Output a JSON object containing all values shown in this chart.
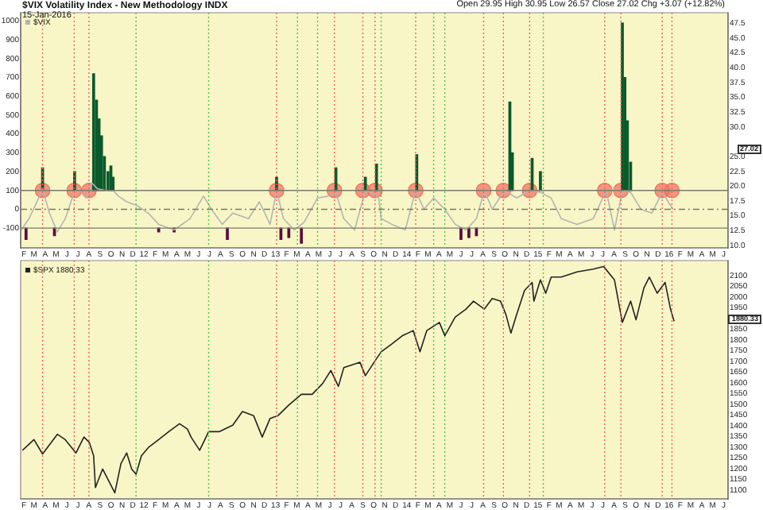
{
  "chart_data": [
    {
      "type": "line",
      "title": "$VIX Volatility Index - New Methodology INDX",
      "annotations": [
        "15-Jan-2016",
        "Open 29.95 High 30.95 Low 26.57 Close 27.02 Chg +3.07 (+12.82%)",
        "27.02"
      ],
      "xlim": [
        "2011-01-23",
        "2016-06-13"
      ],
      "xticks": [
        {
          "value": "2011-02",
          "label": "F"
        },
        {
          "value": "2011-03",
          "label": "M"
        },
        {
          "value": "2011-04",
          "label": "A"
        },
        {
          "value": "2011-05",
          "label": "M"
        },
        {
          "value": "2011-06",
          "label": "J"
        },
        {
          "value": "2011-07",
          "label": "J"
        },
        {
          "value": "2011-08",
          "label": "A"
        },
        {
          "value": "2011-09",
          "label": "S"
        },
        {
          "value": "2011-10",
          "label": "O"
        },
        {
          "value": "2011-11",
          "label": "N"
        },
        {
          "value": "2011-12",
          "label": "D"
        },
        {
          "value": "2012-01",
          "label": "12"
        },
        {
          "value": "2012-02",
          "label": "F"
        },
        {
          "value": "2012-03",
          "label": "M"
        },
        {
          "value": "2012-04",
          "label": "A"
        },
        {
          "value": "2012-05",
          "label": "M"
        },
        {
          "value": "2012-06",
          "label": "J"
        },
        {
          "value": "2012-07",
          "label": "J"
        },
        {
          "value": "2012-08",
          "label": "A"
        },
        {
          "value": "2012-09",
          "label": "S"
        },
        {
          "value": "2012-10",
          "label": "O"
        },
        {
          "value": "2012-11",
          "label": "N"
        },
        {
          "value": "2012-12",
          "label": "D"
        },
        {
          "value": "2013-01",
          "label": "13"
        },
        {
          "value": "2013-02",
          "label": "F"
        },
        {
          "value": "2013-03",
          "label": "M"
        },
        {
          "value": "2013-04",
          "label": "A"
        },
        {
          "value": "2013-05",
          "label": "M"
        },
        {
          "value": "2013-06",
          "label": "J"
        },
        {
          "value": "2013-07",
          "label": "J"
        },
        {
          "value": "2013-08",
          "label": "A"
        },
        {
          "value": "2013-09",
          "label": "S"
        },
        {
          "value": "2013-10",
          "label": "O"
        },
        {
          "value": "2013-11",
          "label": "N"
        },
        {
          "value": "2013-12",
          "label": "D"
        },
        {
          "value": "2014-01",
          "label": "14"
        },
        {
          "value": "2014-02",
          "label": "F"
        },
        {
          "value": "2014-03",
          "label": "M"
        },
        {
          "value": "2014-04",
          "label": "A"
        },
        {
          "value": "2014-05",
          "label": "M"
        },
        {
          "value": "2014-06",
          "label": "J"
        },
        {
          "value": "2014-07",
          "label": "J"
        },
        {
          "value": "2014-08",
          "label": "A"
        },
        {
          "value": "2014-09",
          "label": "S"
        },
        {
          "value": "2014-10",
          "label": "O"
        },
        {
          "value": "2014-11",
          "label": "N"
        },
        {
          "value": "2014-12",
          "label": "D"
        },
        {
          "value": "2015-01",
          "label": "15"
        },
        {
          "value": "2015-02",
          "label": "F"
        },
        {
          "value": "2015-03",
          "label": "M"
        },
        {
          "value": "2015-04",
          "label": "A"
        },
        {
          "value": "2015-05",
          "label": "M"
        },
        {
          "value": "2015-06",
          "label": "J"
        },
        {
          "value": "2015-07",
          "label": "J"
        },
        {
          "value": "2015-08",
          "label": "A"
        },
        {
          "value": "2015-09",
          "label": "S"
        },
        {
          "value": "2015-10",
          "label": "O"
        },
        {
          "value": "2015-11",
          "label": "N"
        },
        {
          "value": "2015-12",
          "label": "D"
        },
        {
          "value": "2016-01",
          "label": "16"
        },
        {
          "value": "2016-02",
          "label": "F"
        },
        {
          "value": "2016-03",
          "label": "M"
        },
        {
          "value": "2016-04",
          "label": "A"
        },
        {
          "value": "2016-05",
          "label": "M"
        },
        {
          "value": "2016-06",
          "label": "J"
        }
      ],
      "ylim": [
        -205,
        1045
      ],
      "yticks": [
        -100,
        0,
        100,
        200,
        300,
        400,
        500,
        600,
        700,
        800,
        900,
        1000
      ],
      "y2lim": [
        9.6,
        49.3
      ],
      "y2ticks": [
        {
          "value": 10,
          "label": "10.0"
        },
        12.5,
        {
          "value": 15,
          "label": "15.0"
        },
        17.5,
        {
          "value": 20,
          "label": "20.0"
        },
        22.5,
        {
          "value": 25,
          "label": "25.0"
        },
        {
          "value": 30,
          "label": "30.0"
        },
        32.5,
        {
          "value": 35,
          "label": "35.0"
        },
        37.5,
        {
          "value": 40,
          "label": "40.0"
        },
        42.5,
        {
          "value": 45,
          "label": "45.0"
        },
        47.5
      ],
      "legend": "top left",
      "ref_lines": [
        {
          "axis": "y",
          "value": 100,
          "color": "#7a7a6a"
        },
        {
          "axis": "y",
          "value": -100,
          "color": "#7a7a6a"
        },
        {
          "axis": "y",
          "value": 0,
          "color": "#7a7a6a",
          "line_style": "dashed"
        },
        {
          "axis": "x",
          "value": "2011-03-25",
          "color": "#f06060",
          "line_style": "dotted"
        },
        {
          "axis": "x",
          "value": "2011-06-21",
          "color": "#f06060",
          "line_style": "dotted"
        },
        {
          "axis": "x",
          "value": "2011-08-01",
          "color": "#f06060",
          "line_style": "dotted"
        },
        {
          "axis": "x",
          "value": "2013-01-04",
          "color": "#f06060",
          "line_style": "dotted"
        },
        {
          "axis": "x",
          "value": "2013-06-14",
          "color": "#f06060",
          "line_style": "dotted"
        },
        {
          "axis": "x",
          "value": "2013-09-01",
          "color": "#f06060",
          "line_style": "dotted"
        },
        {
          "axis": "x",
          "value": "2013-10-05",
          "color": "#f06060",
          "line_style": "dotted"
        },
        {
          "axis": "x",
          "value": "2014-01-26",
          "color": "#f06060",
          "line_style": "dotted"
        },
        {
          "axis": "x",
          "value": "2014-08-03",
          "color": "#f06060",
          "line_style": "dotted"
        },
        {
          "axis": "x",
          "value": "2014-09-27",
          "color": "#f06060",
          "line_style": "dotted"
        },
        {
          "axis": "x",
          "value": "2014-12-09",
          "color": "#f06060",
          "line_style": "dotted"
        },
        {
          "axis": "x",
          "value": "2015-07-06",
          "color": "#f06060",
          "line_style": "dotted"
        },
        {
          "axis": "x",
          "value": "2015-08-20",
          "color": "#f06060",
          "line_style": "dotted"
        },
        {
          "axis": "x",
          "value": "2015-12-13",
          "color": "#f06060",
          "line_style": "dotted"
        },
        {
          "axis": "x",
          "value": "2016-01-09",
          "color": "#f06060",
          "line_style": "dotted"
        },
        {
          "axis": "x",
          "value": "2011-12-10",
          "color": "#50c050",
          "line_style": "dotted"
        },
        {
          "axis": "x",
          "value": "2012-06-29",
          "color": "#50c050",
          "line_style": "dotted"
        },
        {
          "axis": "x",
          "value": "2013-03-03",
          "color": "#50c050",
          "line_style": "dotted"
        },
        {
          "axis": "x",
          "value": "2013-04-28",
          "color": "#50c050",
          "line_style": "dotted"
        },
        {
          "axis": "x",
          "value": "2013-10-22",
          "color": "#50c050",
          "line_style": "dotted"
        },
        {
          "axis": "x",
          "value": "2014-03-17",
          "color": "#50c050",
          "line_style": "dotted"
        },
        {
          "axis": "x",
          "value": "2014-04-17",
          "color": "#50c050",
          "line_style": "dotted"
        },
        {
          "axis": "x",
          "value": "2015-01-16",
          "color": "#50c050",
          "line_style": "dotted"
        }
      ],
      "series": [
        {
          "name": "$VIX",
          "color": "#b4b4b4",
          "marker": "none",
          "x": [
            "2011-01-25",
            "2011-02-15",
            "2011-03-07",
            "2011-03-25",
            "2011-04-13",
            "2011-05-05",
            "2011-05-27",
            "2011-06-21",
            "2011-07-03",
            "2011-07-25",
            "2011-08-09",
            "2011-08-24",
            "2011-09-16",
            "2011-10-07",
            "2011-10-22",
            "2011-11-14",
            "2011-12-13",
            "2012-01-13",
            "2012-02-11",
            "2012-03-25",
            "2012-05-08",
            "2012-06-15",
            "2012-07-07",
            "2012-08-06",
            "2012-09-04",
            "2012-10-18",
            "2012-11-17",
            "2012-12-17",
            "2013-01-04",
            "2013-01-23",
            "2013-02-22",
            "2013-03-21",
            "2013-04-28",
            "2013-05-27",
            "2013-06-18",
            "2013-07-10",
            "2013-08-09",
            "2013-09-08",
            "2013-09-23",
            "2013-10-15",
            "2013-10-22",
            "2013-11-21",
            "2013-12-28",
            "2014-01-26",
            "2014-02-18",
            "2014-03-17",
            "2014-04-17",
            "2014-05-16",
            "2014-06-15",
            "2014-07-14",
            "2014-08-05",
            "2014-08-27",
            "2014-09-30",
            "2014-11-03",
            "2014-12-09",
            "2015-01-08",
            "2015-02-07",
            "2015-03-07",
            "2015-04-20",
            "2015-06-04",
            "2015-07-10",
            "2015-08-02",
            "2015-08-24",
            "2015-09-16",
            "2015-10-15",
            "2015-11-14",
            "2015-12-13",
            "2016-01-12"
          ],
          "values": [
            -110,
            -50,
            30,
            110,
            -20,
            -120,
            -50,
            90,
            110,
            60,
            140,
            110,
            100,
            100,
            70,
            40,
            20,
            -20,
            -80,
            -110,
            -50,
            70,
            0,
            -80,
            -20,
            -50,
            40,
            -80,
            100,
            -50,
            -110,
            -70,
            60,
            70,
            90,
            -50,
            -110,
            100,
            90,
            60,
            -50,
            -80,
            -110,
            100,
            0,
            60,
            0,
            -80,
            -110,
            -50,
            100,
            0,
            100,
            60,
            100,
            90,
            60,
            -50,
            -80,
            -50,
            100,
            -110,
            100,
            90,
            0,
            -20,
            90,
            0
          ]
        },
        {
          "type": "bar",
          "color": "#0b5a2c",
          "x": [
            "2011-03-25",
            "2011-06-22",
            "2011-08-14",
            "2011-08-22",
            "2011-08-29",
            "2011-09-05",
            "2011-09-13",
            "2011-09-23",
            "2011-10-01",
            "2011-10-07",
            "2013-01-04",
            "2013-06-18",
            "2013-09-08",
            "2013-10-09",
            "2014-01-29",
            "2014-10-15",
            "2014-10-22",
            "2014-12-16",
            "2015-01-08",
            "2015-08-24",
            "2015-08-31",
            "2015-09-07",
            "2015-09-16"
          ],
          "base": [
            100,
            100,
            100,
            100,
            100,
            100,
            100,
            100,
            100,
            100,
            100,
            100,
            100,
            100,
            100,
            100,
            100,
            100,
            100,
            100,
            100,
            100,
            100
          ],
          "values": [
            120,
            100,
            620,
            480,
            380,
            290,
            180,
            100,
            130,
            70,
            70,
            120,
            70,
            140,
            190,
            470,
            200,
            170,
            100,
            890,
            600,
            370,
            150
          ]
        },
        {
          "type": "bar",
          "color": "#5c0c3c",
          "x": [
            "2011-02-07",
            "2011-04-27",
            "2012-02-11",
            "2012-03-25",
            "2012-08-20",
            "2013-01-16",
            "2013-02-07",
            "2013-03-14",
            "2014-06-01",
            "2014-06-23",
            "2014-07-14"
          ],
          "base": [
            -100,
            -100,
            -100,
            -100,
            -100,
            -100,
            -100,
            -100,
            -100,
            -100,
            -100
          ],
          "values": [
            -60,
            -40,
            -20,
            -20,
            -60,
            -60,
            -50,
            -80,
            -60,
            -50,
            -40
          ]
        },
        {
          "type": "scatter",
          "color": "#f07060",
          "marker": "circle",
          "x": [
            "2011-03-25",
            "2011-06-21",
            "2011-08-01",
            "2013-01-04",
            "2013-06-14",
            "2013-09-01",
            "2013-10-05",
            "2014-01-26",
            "2014-08-03",
            "2014-09-27",
            "2014-12-09",
            "2015-07-06",
            "2015-08-20",
            "2015-12-13",
            "2016-01-09"
          ],
          "values": [
            100,
            100,
            100,
            100,
            100,
            100,
            100,
            100,
            100,
            100,
            100,
            100,
            100,
            100,
            100
          ]
        }
      ]
    },
    {
      "type": "line",
      "annotations": [
        "1880.33"
      ],
      "xlim": [
        "2011-01-23",
        "2016-06-13"
      ],
      "xticks": [
        {
          "value": "2011-02",
          "label": "F"
        },
        {
          "value": "2011-03",
          "label": "M"
        },
        {
          "value": "2011-04",
          "label": "A"
        },
        {
          "value": "2011-05",
          "label": "M"
        },
        {
          "value": "2011-06",
          "label": "J"
        },
        {
          "value": "2011-07",
          "label": "J"
        },
        {
          "value": "2011-08",
          "label": "A"
        },
        {
          "value": "2011-09",
          "label": "S"
        },
        {
          "value": "2011-10",
          "label": "O"
        },
        {
          "value": "2011-11",
          "label": "N"
        },
        {
          "value": "2011-12",
          "label": "D"
        },
        {
          "value": "2012-01",
          "label": "12"
        },
        {
          "value": "2012-02",
          "label": "F"
        },
        {
          "value": "2012-03",
          "label": "M"
        },
        {
          "value": "2012-04",
          "label": "A"
        },
        {
          "value": "2012-05",
          "label": "M"
        },
        {
          "value": "2012-06",
          "label": "J"
        },
        {
          "value": "2012-07",
          "label": "J"
        },
        {
          "value": "2012-08",
          "label": "A"
        },
        {
          "value": "2012-09",
          "label": "S"
        },
        {
          "value": "2012-10",
          "label": "O"
        },
        {
          "value": "2012-11",
          "label": "N"
        },
        {
          "value": "2012-12",
          "label": "D"
        },
        {
          "value": "2013-01",
          "label": "13"
        },
        {
          "value": "2013-02",
          "label": "F"
        },
        {
          "value": "2013-03",
          "label": "M"
        },
        {
          "value": "2013-04",
          "label": "A"
        },
        {
          "value": "2013-05",
          "label": "M"
        },
        {
          "value": "2013-06",
          "label": "J"
        },
        {
          "value": "2013-07",
          "label": "J"
        },
        {
          "value": "2013-08",
          "label": "A"
        },
        {
          "value": "2013-09",
          "label": "S"
        },
        {
          "value": "2013-10",
          "label": "O"
        },
        {
          "value": "2013-11",
          "label": "N"
        },
        {
          "value": "2013-12",
          "label": "D"
        },
        {
          "value": "2014-01",
          "label": "14"
        },
        {
          "value": "2014-02",
          "label": "F"
        },
        {
          "value": "2014-03",
          "label": "M"
        },
        {
          "value": "2014-04",
          "label": "A"
        },
        {
          "value": "2014-05",
          "label": "M"
        },
        {
          "value": "2014-06",
          "label": "J"
        },
        {
          "value": "2014-07",
          "label": "J"
        },
        {
          "value": "2014-08",
          "label": "A"
        },
        {
          "value": "2014-09",
          "label": "S"
        },
        {
          "value": "2014-10",
          "label": "O"
        },
        {
          "value": "2014-11",
          "label": "N"
        },
        {
          "value": "2014-12",
          "label": "D"
        },
        {
          "value": "2015-01",
          "label": "15"
        },
        {
          "value": "2015-02",
          "label": "F"
        },
        {
          "value": "2015-03",
          "label": "M"
        },
        {
          "value": "2015-04",
          "label": "A"
        },
        {
          "value": "2015-05",
          "label": "M"
        },
        {
          "value": "2015-06",
          "label": "J"
        },
        {
          "value": "2015-07",
          "label": "J"
        },
        {
          "value": "2015-08",
          "label": "A"
        },
        {
          "value": "2015-09",
          "label": "S"
        },
        {
          "value": "2015-10",
          "label": "O"
        },
        {
          "value": "2015-11",
          "label": "N"
        },
        {
          "value": "2015-12",
          "label": "D"
        },
        {
          "value": "2016-01",
          "label": "16"
        },
        {
          "value": "2016-02",
          "label": "F"
        },
        {
          "value": "2016-03",
          "label": "M"
        },
        {
          "value": "2016-04",
          "label": "A"
        },
        {
          "value": "2016-05",
          "label": "M"
        },
        {
          "value": "2016-06",
          "label": "J"
        }
      ],
      "y2lim": [
        1060,
        2170
      ],
      "y2ticks": [
        1100,
        1150,
        1200,
        1250,
        1300,
        1350,
        1400,
        1450,
        1500,
        1550,
        1600,
        1650,
        1700,
        1750,
        1800,
        1850,
        1950,
        2000,
        2050,
        2100
      ],
      "legend": "top left",
      "ref_lines": [
        {
          "axis": "x",
          "value": "2011-03-25",
          "color": "#f06060",
          "line_style": "dotted"
        },
        {
          "axis": "x",
          "value": "2011-06-21",
          "color": "#f06060",
          "line_style": "dotted"
        },
        {
          "axis": "x",
          "value": "2011-08-01",
          "color": "#f06060",
          "line_style": "dotted"
        },
        {
          "axis": "x",
          "value": "2013-01-04",
          "color": "#f06060",
          "line_style": "dotted"
        },
        {
          "axis": "x",
          "value": "2013-06-14",
          "color": "#f06060",
          "line_style": "dotted"
        },
        {
          "axis": "x",
          "value": "2013-09-01",
          "color": "#f06060",
          "line_style": "dotted"
        },
        {
          "axis": "x",
          "value": "2013-10-05",
          "color": "#f06060",
          "line_style": "dotted"
        },
        {
          "axis": "x",
          "value": "2014-01-26",
          "color": "#f06060",
          "line_style": "dotted"
        },
        {
          "axis": "x",
          "value": "2014-08-03",
          "color": "#f06060",
          "line_style": "dotted"
        },
        {
          "axis": "x",
          "value": "2014-09-27",
          "color": "#f06060",
          "line_style": "dotted"
        },
        {
          "axis": "x",
          "value": "2014-12-09",
          "color": "#f06060",
          "line_style": "dotted"
        },
        {
          "axis": "x",
          "value": "2015-07-06",
          "color": "#f06060",
          "line_style": "dotted"
        },
        {
          "axis": "x",
          "value": "2015-08-20",
          "color": "#f06060",
          "line_style": "dotted"
        },
        {
          "axis": "x",
          "value": "2015-12-13",
          "color": "#f06060",
          "line_style": "dotted"
        },
        {
          "axis": "x",
          "value": "2016-01-09",
          "color": "#f06060",
          "line_style": "dotted"
        },
        {
          "axis": "x",
          "value": "2011-12-10",
          "color": "#50c050",
          "line_style": "dotted"
        },
        {
          "axis": "x",
          "value": "2012-06-29",
          "color": "#50c050",
          "line_style": "dotted"
        },
        {
          "axis": "x",
          "value": "2013-03-03",
          "color": "#50c050",
          "line_style": "dotted"
        },
        {
          "axis": "x",
          "value": "2013-04-28",
          "color": "#50c050",
          "line_style": "dotted"
        },
        {
          "axis": "x",
          "value": "2013-10-22",
          "color": "#50c050",
          "line_style": "dotted"
        },
        {
          "axis": "x",
          "value": "2014-03-17",
          "color": "#50c050",
          "line_style": "dotted"
        },
        {
          "axis": "x",
          "value": "2014-04-17",
          "color": "#50c050",
          "line_style": "dotted"
        },
        {
          "axis": "x",
          "value": "2015-01-16",
          "color": "#50c050",
          "line_style": "dotted"
        }
      ],
      "series": [
        {
          "name": "$SPX 1880.33",
          "color": "#222222",
          "marker": "none",
          "axis": "y2",
          "x": [
            "2011-01-28",
            "2011-03-01",
            "2011-03-25",
            "2011-05-05",
            "2011-05-27",
            "2011-06-26",
            "2011-07-18",
            "2011-08-02",
            "2011-08-14",
            "2011-08-19",
            "2011-09-08",
            "2011-09-23",
            "2011-10-12",
            "2011-10-29",
            "2011-11-14",
            "2011-11-28",
            "2011-12-10",
            "2011-12-25",
            "2012-01-13",
            "2012-02-11",
            "2012-03-10",
            "2012-04-09",
            "2012-05-01",
            "2012-05-11",
            "2012-06-04",
            "2012-06-29",
            "2012-07-28",
            "2012-09-04",
            "2012-10-01",
            "2012-11-01",
            "2012-11-25",
            "2012-12-17",
            "2013-01-08",
            "2013-02-07",
            "2013-03-14",
            "2013-04-13",
            "2013-05-12",
            "2013-06-04",
            "2013-06-25",
            "2013-07-10",
            "2013-08-24",
            "2013-09-08",
            "2013-10-07",
            "2013-10-22",
            "2013-11-21",
            "2013-12-20",
            "2014-01-19",
            "2014-02-07",
            "2014-02-26",
            "2014-04-02",
            "2014-04-17",
            "2014-05-16",
            "2014-06-15",
            "2014-07-06",
            "2014-08-05",
            "2014-08-27",
            "2014-09-19",
            "2014-10-04",
            "2014-10-18",
            "2014-11-03",
            "2014-11-25",
            "2014-12-16",
            "2014-12-21",
            "2015-01-08",
            "2015-01-23",
            "2015-02-07",
            "2015-03-07",
            "2015-04-20",
            "2015-06-04",
            "2015-07-03",
            "2015-08-02",
            "2015-08-24",
            "2015-09-16",
            "2015-10-01",
            "2015-10-23",
            "2015-11-07",
            "2015-11-29",
            "2015-12-21",
            "2016-01-05",
            "2016-01-15"
          ],
          "values": [
            1286,
            1336,
            1269,
            1361,
            1336,
            1274,
            1348,
            1323,
            1261,
            1113,
            1199,
            1150,
            1088,
            1224,
            1274,
            1199,
            1175,
            1261,
            1299,
            1336,
            1373,
            1410,
            1385,
            1348,
            1286,
            1373,
            1373,
            1403,
            1467,
            1448,
            1348,
            1435,
            1448,
            1497,
            1547,
            1547,
            1597,
            1658,
            1584,
            1671,
            1696,
            1634,
            1708,
            1745,
            1782,
            1820,
            1844,
            1745,
            1844,
            1882,
            1820,
            1907,
            1944,
            1981,
            1944,
            1993,
            1981,
            1919,
            1832,
            1919,
            2031,
            2068,
            1981,
            2080,
            2018,
            2093,
            2093,
            2117,
            2130,
            2142,
            2080,
            1882,
            1981,
            1894,
            2043,
            2093,
            2018,
            2068,
            1944,
            1887
          ]
        }
      ]
    }
  ]
}
